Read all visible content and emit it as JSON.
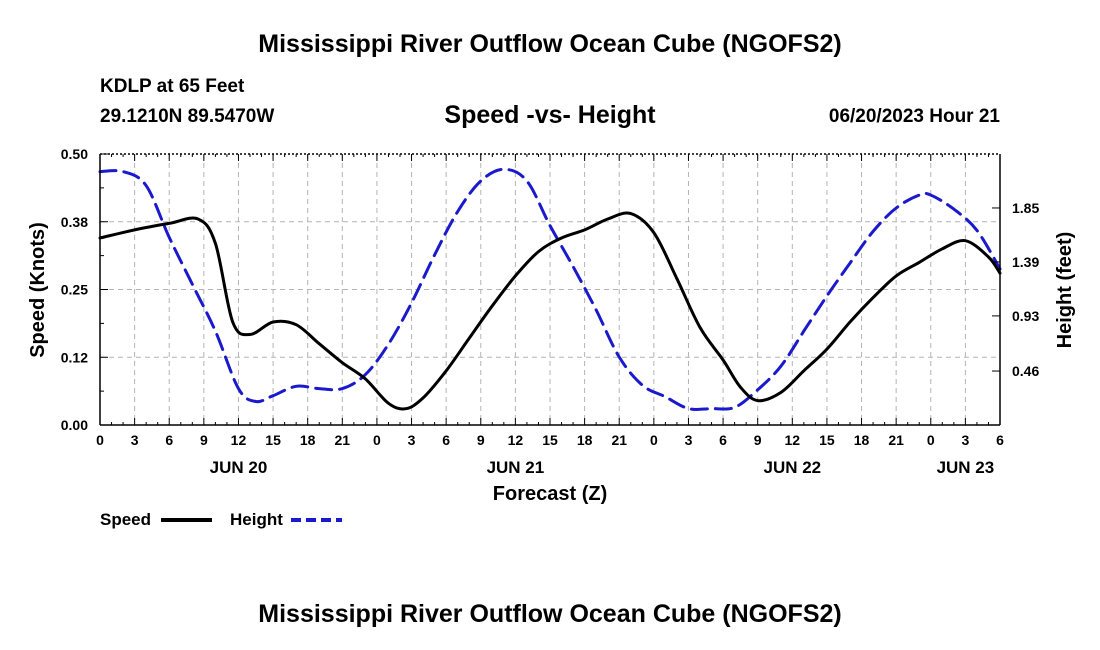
{
  "header": {
    "title": "Mississippi River Outflow Ocean Cube (NGOFS2)",
    "station": "KDLP at 65 Feet",
    "coords": "29.1210N  89.5470W",
    "datetime": "06/20/2023 Hour 21"
  },
  "footer": {
    "title": "Mississippi River Outflow Ocean Cube (NGOFS2)"
  },
  "colors": {
    "speed": "#000000",
    "height": "#1a1acc",
    "grid": "#b4b4b4"
  },
  "chart_data": {
    "type": "line",
    "title": "Speed -vs- Height",
    "xlabel": "Forecast (Z)",
    "ylabel": "Speed (Knots)",
    "y2label": "Height (feet)",
    "xlim": [
      0,
      78
    ],
    "ylim": [
      0,
      0.5
    ],
    "y2lim": [
      0,
      2.31
    ],
    "x_ticks": [
      0,
      3,
      6,
      9,
      12,
      15,
      18,
      21,
      24,
      27,
      30,
      33,
      36,
      39,
      42,
      45,
      48,
      51,
      54,
      57,
      60,
      63,
      66,
      69,
      72,
      75,
      78
    ],
    "x_tick_labels": [
      "0",
      "3",
      "6",
      "9",
      "12",
      "15",
      "18",
      "21",
      "0",
      "3",
      "6",
      "9",
      "12",
      "15",
      "18",
      "21",
      "0",
      "3",
      "6",
      "9",
      "12",
      "15",
      "18",
      "21",
      "0",
      "3",
      "6"
    ],
    "y_ticks": [
      0,
      0.125,
      0.25,
      0.375,
      0.5
    ],
    "y_tick_labels": [
      "0.00",
      "0.12",
      "0.25",
      "0.38",
      "0.50"
    ],
    "y2_ticks": [
      0.46,
      0.93,
      1.39,
      1.85
    ],
    "y2_tick_labels": [
      "0.46",
      "0.93",
      "1.39",
      "1.85"
    ],
    "date_labels": [
      {
        "x": 12,
        "label": "JUN 20"
      },
      {
        "x": 36,
        "label": "JUN 21"
      },
      {
        "x": 60,
        "label": "JUN 22"
      },
      {
        "x": 75,
        "label": "JUN 23"
      }
    ],
    "grid": true,
    "legend_position": "bottom-left",
    "series": [
      {
        "name": "Speed",
        "axis": "left",
        "style": "solid",
        "x": [
          0,
          3,
          6,
          8.5,
          10,
          11.5,
          13,
          15,
          17,
          19,
          21,
          23,
          25,
          26.5,
          28,
          30,
          32,
          34,
          36,
          38,
          40,
          42,
          44,
          46,
          48,
          50,
          52,
          54,
          55.5,
          57,
          59,
          61,
          63,
          65,
          67,
          69,
          71,
          73,
          75,
          77,
          78
        ],
        "values": [
          0.345,
          0.36,
          0.372,
          0.38,
          0.335,
          0.19,
          0.167,
          0.19,
          0.185,
          0.15,
          0.115,
          0.085,
          0.04,
          0.03,
          0.05,
          0.1,
          0.16,
          0.22,
          0.275,
          0.32,
          0.345,
          0.36,
          0.38,
          0.39,
          0.355,
          0.27,
          0.18,
          0.12,
          0.07,
          0.045,
          0.06,
          0.1,
          0.14,
          0.19,
          0.235,
          0.275,
          0.3,
          0.325,
          0.34,
          0.31,
          0.28
        ]
      },
      {
        "name": "Height",
        "axis": "right",
        "style": "dashed",
        "x": [
          0,
          2,
          4,
          6,
          8,
          10,
          12,
          13.5,
          15,
          17,
          19,
          21,
          23,
          25,
          27,
          29,
          31,
          33,
          35,
          37,
          39,
          41,
          43,
          45,
          47,
          49,
          51,
          53,
          55,
          57,
          59,
          61,
          63,
          65,
          67,
          69,
          71,
          72,
          74,
          76,
          78
        ],
        "values": [
          2.16,
          2.16,
          2.04,
          1.6,
          1.2,
          0.8,
          0.31,
          0.2,
          0.25,
          0.33,
          0.31,
          0.31,
          0.43,
          0.69,
          1.04,
          1.45,
          1.82,
          2.08,
          2.18,
          2.08,
          1.7,
          1.35,
          0.98,
          0.58,
          0.34,
          0.24,
          0.14,
          0.14,
          0.15,
          0.3,
          0.5,
          0.8,
          1.1,
          1.38,
          1.65,
          1.85,
          1.96,
          1.96,
          1.84,
          1.66,
          1.33
        ]
      }
    ]
  }
}
